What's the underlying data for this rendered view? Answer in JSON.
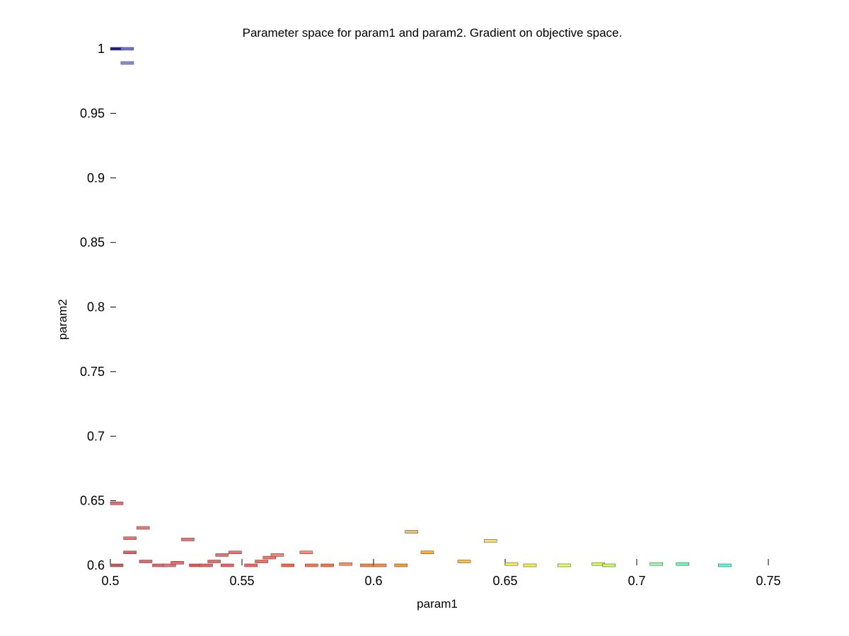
{
  "chart_data": {
    "type": "scatter",
    "title": "Parameter space for param1 and param2. Gradient on objective space.",
    "xlabel": "param1",
    "ylabel": "param2",
    "xlim": [
      0.5,
      0.75
    ],
    "ylim": [
      0.6,
      1.0
    ],
    "x_ticks": [
      "0.5",
      "0.55",
      "0.6",
      "0.65",
      "0.7",
      "0.75"
    ],
    "y_ticks": [
      "0.6",
      "0.65",
      "0.7",
      "0.75",
      "0.8",
      "0.85",
      "0.9",
      "0.95",
      "1"
    ],
    "grid": false,
    "legend": "none",
    "marker": "small horizontal rectangles",
    "colormap": "gradient on objective space (blue → red → orange → yellow → green → cyan)",
    "points": [
      {
        "x": 0.5,
        "y": 1.0,
        "color": "#1a1a8c"
      },
      {
        "x": 0.504,
        "y": 1.0,
        "color": "#6f6fd0"
      },
      {
        "x": 0.504,
        "y": 0.989,
        "color": "#8a8ad8"
      },
      {
        "x": 0.5,
        "y": 0.648,
        "color": "#ee6a6a"
      },
      {
        "x": 0.5,
        "y": 0.6,
        "color": "#cc5555"
      },
      {
        "x": 0.505,
        "y": 0.621,
        "color": "#ee7070"
      },
      {
        "x": 0.505,
        "y": 0.61,
        "color": "#dd6060"
      },
      {
        "x": 0.51,
        "y": 0.629,
        "color": "#ee7878"
      },
      {
        "x": 0.511,
        "y": 0.603,
        "color": "#dd6a6a"
      },
      {
        "x": 0.516,
        "y": 0.6,
        "color": "#ee6060"
      },
      {
        "x": 0.52,
        "y": 0.6,
        "color": "#ee7070"
      },
      {
        "x": 0.523,
        "y": 0.602,
        "color": "#ee6868"
      },
      {
        "x": 0.527,
        "y": 0.62,
        "color": "#ee7070"
      },
      {
        "x": 0.53,
        "y": 0.6,
        "color": "#ee5050"
      },
      {
        "x": 0.534,
        "y": 0.6,
        "color": "#ee6060"
      },
      {
        "x": 0.537,
        "y": 0.603,
        "color": "#ee6a6a"
      },
      {
        "x": 0.54,
        "y": 0.608,
        "color": "#ee7070"
      },
      {
        "x": 0.542,
        "y": 0.6,
        "color": "#ee6060"
      },
      {
        "x": 0.545,
        "y": 0.61,
        "color": "#ee7070"
      },
      {
        "x": 0.551,
        "y": 0.6,
        "color": "#ff5a5a"
      },
      {
        "x": 0.555,
        "y": 0.603,
        "color": "#ff6a5a"
      },
      {
        "x": 0.558,
        "y": 0.606,
        "color": "#ff7060"
      },
      {
        "x": 0.561,
        "y": 0.608,
        "color": "#ff8070"
      },
      {
        "x": 0.565,
        "y": 0.6,
        "color": "#ff6040"
      },
      {
        "x": 0.572,
        "y": 0.61,
        "color": "#ff8a70"
      },
      {
        "x": 0.574,
        "y": 0.6,
        "color": "#ff7050"
      },
      {
        "x": 0.58,
        "y": 0.6,
        "color": "#ff7040"
      },
      {
        "x": 0.587,
        "y": 0.601,
        "color": "#ff9060"
      },
      {
        "x": 0.595,
        "y": 0.6,
        "color": "#ff8040"
      },
      {
        "x": 0.6,
        "y": 0.6,
        "color": "#ff8a40"
      },
      {
        "x": 0.608,
        "y": 0.6,
        "color": "#ff9a30"
      },
      {
        "x": 0.612,
        "y": 0.626,
        "color": "#f0c070"
      },
      {
        "x": 0.618,
        "y": 0.61,
        "color": "#ffb030"
      },
      {
        "x": 0.632,
        "y": 0.603,
        "color": "#ffc040"
      },
      {
        "x": 0.642,
        "y": 0.619,
        "color": "#ffe060"
      },
      {
        "x": 0.65,
        "y": 0.601,
        "color": "#ffee50"
      },
      {
        "x": 0.657,
        "y": 0.6,
        "color": "#ffee40"
      },
      {
        "x": 0.67,
        "y": 0.6,
        "color": "#eeff50"
      },
      {
        "x": 0.683,
        "y": 0.601,
        "color": "#ddff50"
      },
      {
        "x": 0.687,
        "y": 0.6,
        "color": "#ccff60"
      },
      {
        "x": 0.705,
        "y": 0.601,
        "color": "#99ffaa"
      },
      {
        "x": 0.715,
        "y": 0.601,
        "color": "#66ffbb"
      },
      {
        "x": 0.731,
        "y": 0.6,
        "color": "#55ffdd"
      }
    ]
  }
}
